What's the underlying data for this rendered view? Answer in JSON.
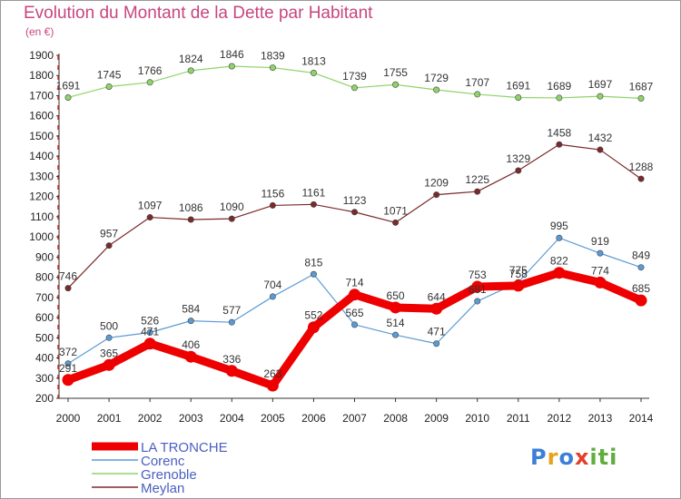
{
  "title": "Evolution du Montant de la Dette par Habitant",
  "unit_label": "(en €)",
  "logo": {
    "text": "Proxiti"
  },
  "chart_data": {
    "type": "line",
    "title": "Evolution du Montant de la Dette par Habitant",
    "subtitle": "(en €)",
    "x": [
      "2000",
      "2001",
      "2002",
      "2003",
      "2004",
      "2005",
      "2006",
      "2007",
      "2008",
      "2009",
      "2010",
      "2011",
      "2012",
      "2013",
      "2014"
    ],
    "ylim": [
      200,
      1900
    ],
    "yticks": [
      200,
      300,
      400,
      500,
      600,
      700,
      800,
      900,
      1000,
      1100,
      1200,
      1300,
      1400,
      1500,
      1600,
      1700,
      1800,
      1900
    ],
    "grid": false,
    "legend_position": "bottom-left",
    "series": [
      {
        "name": "LA TRONCHE",
        "color": "#ee0000",
        "values": [
          291,
          365,
          471,
          406,
          336,
          263,
          552,
          714,
          650,
          644,
          753,
          758,
          822,
          774,
          685
        ]
      },
      {
        "name": "Corenc",
        "color": "#5b9bd5",
        "values": [
          372,
          500,
          526,
          584,
          577,
          704,
          815,
          565,
          514,
          471,
          681,
          775,
          995,
          919,
          849
        ]
      },
      {
        "name": "Grenoble",
        "color": "#8fd46a",
        "values": [
          1691,
          1745,
          1766,
          1824,
          1846,
          1839,
          1813,
          1739,
          1755,
          1729,
          1707,
          1691,
          1689,
          1697,
          1687
        ]
      },
      {
        "name": "Meylan",
        "color": "#7a2a2a",
        "values": [
          746,
          957,
          1097,
          1086,
          1090,
          1156,
          1161,
          1123,
          1071,
          1209,
          1225,
          1329,
          1458,
          1432,
          1288
        ]
      }
    ]
  }
}
